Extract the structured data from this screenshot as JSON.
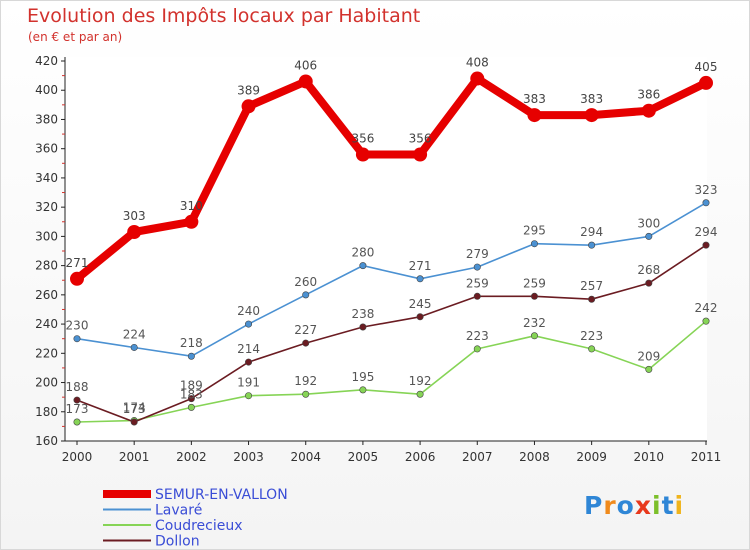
{
  "header": {
    "title": "Evolution des Impôts locaux par Habitant",
    "subtitle": "(en € et par an)"
  },
  "logo": {
    "text": "Proxiti",
    "letters": [
      {
        "ch": "P",
        "color": "#2f86d6"
      },
      {
        "ch": "r",
        "color": "#f08a1c"
      },
      {
        "ch": "o",
        "color": "#2f86d6"
      },
      {
        "ch": "x",
        "color": "#e8381c"
      },
      {
        "ch": "i",
        "color": "#7cbf2a"
      },
      {
        "ch": "t",
        "color": "#2f86d6"
      },
      {
        "ch": "i",
        "color": "#f0b41c"
      }
    ]
  },
  "chart_data": {
    "type": "line",
    "title": "Evolution des Impôts locaux par Habitant",
    "subtitle": "(en € et par an)",
    "categories": [
      "2000",
      "2001",
      "2002",
      "2003",
      "2004",
      "2005",
      "2006",
      "2007",
      "2008",
      "2009",
      "2010",
      "2011"
    ],
    "ylim": [
      160,
      420
    ],
    "yticks": [
      160,
      180,
      200,
      220,
      240,
      260,
      280,
      300,
      320,
      340,
      360,
      380,
      400,
      420
    ],
    "grid": false,
    "legend_position": "bottom-left",
    "series": [
      {
        "name": "SEMUR-EN-VALLON",
        "color": "#e60000",
        "values": [
          271,
          303,
          310,
          389,
          406,
          356,
          356,
          408,
          383,
          383,
          386,
          405
        ]
      },
      {
        "name": "Lavaré",
        "color": "#4b91d2",
        "values": [
          230,
          224,
          218,
          240,
          260,
          280,
          271,
          279,
          295,
          294,
          300,
          323
        ]
      },
      {
        "name": "Coudrecieux",
        "color": "#86d456",
        "values": [
          173,
          174,
          183,
          191,
          192,
          195,
          192,
          223,
          232,
          223,
          209,
          242
        ]
      },
      {
        "name": "Dollon",
        "color": "#6b1c22",
        "values": [
          188,
          173,
          189,
          214,
          227,
          238,
          245,
          259,
          259,
          257,
          268,
          294
        ]
      }
    ]
  }
}
